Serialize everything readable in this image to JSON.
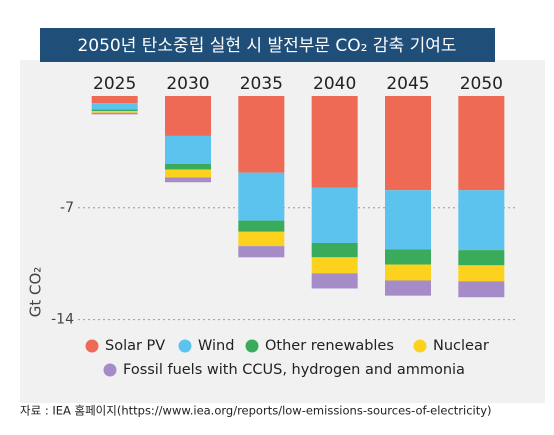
{
  "chart_data": {
    "type": "bar",
    "stacked": true,
    "title": "2050년 탄소중립 실현 시 발전부문 CO₂ 감축 기여도",
    "y_label": "Gt CO₂",
    "categories": [
      "2025",
      "2030",
      "2035",
      "2040",
      "2045",
      "2050"
    ],
    "series": [
      {
        "name": "Solar PV",
        "color": "#ee6a55",
        "values": [
          -0.45,
          -2.5,
          -4.8,
          -5.75,
          -5.9,
          -5.9
        ]
      },
      {
        "name": "Wind",
        "color": "#5bc3ee",
        "values": [
          -0.4,
          -1.75,
          -3.0,
          -3.45,
          -3.7,
          -3.75
        ]
      },
      {
        "name": "Other renewables",
        "color": "#3aab5a",
        "values": [
          -0.1,
          -0.35,
          -0.7,
          -0.9,
          -0.95,
          -0.95
        ]
      },
      {
        "name": "Nuclear",
        "color": "#fcd21e",
        "values": [
          -0.1,
          -0.5,
          -0.9,
          -1.0,
          -1.0,
          -1.0
        ]
      },
      {
        "name": "Fossil fuels with CCUS, hydrogen and ammonia",
        "color": "#a68bc9",
        "values": [
          -0.1,
          -0.3,
          -0.7,
          -0.95,
          -0.95,
          -1.0
        ]
      }
    ],
    "ylim": [
      -14.4,
      0
    ],
    "yticks": [
      -7,
      -14
    ],
    "grid": true,
    "source": "자료 : IEA 홈페이지(https://www.iea.org/reports/low-emissions-sources-of-electricity)"
  }
}
